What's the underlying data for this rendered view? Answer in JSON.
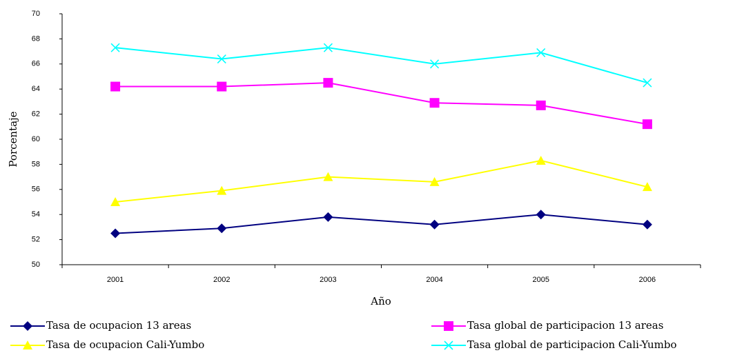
{
  "chart_data": {
    "type": "line",
    "x_label": "Año",
    "y_label": "Porcentaje",
    "categories": [
      "2001",
      "2002",
      "2003",
      "2004",
      "2005",
      "2006"
    ],
    "series": [
      {
        "name": "Tasa de ocupacion 13 areas",
        "color": "#000080",
        "marker": "diamond",
        "values": [
          52.5,
          52.9,
          53.8,
          53.2,
          54.0,
          53.2
        ]
      },
      {
        "name": "Tasa global de participacion 13 areas",
        "color": "#ff00ff",
        "marker": "square",
        "values": [
          64.2,
          64.2,
          64.5,
          62.9,
          62.7,
          61.2
        ]
      },
      {
        "name": "Tasa de ocupacion Cali-Yumbo",
        "color": "#ffff00",
        "marker": "triangle",
        "values": [
          55.0,
          55.9,
          57.0,
          56.6,
          58.3,
          56.2
        ]
      },
      {
        "name": "Tasa global de participacion Cali-Yumbo",
        "color": "#00ffff",
        "marker": "x",
        "values": [
          67.3,
          66.4,
          67.3,
          66.0,
          66.9,
          64.5
        ]
      }
    ],
    "ylim": [
      50,
      70
    ],
    "yticks": [
      50,
      52,
      54,
      56,
      58,
      60,
      62,
      64,
      66,
      68,
      70
    ],
    "grid": false
  }
}
